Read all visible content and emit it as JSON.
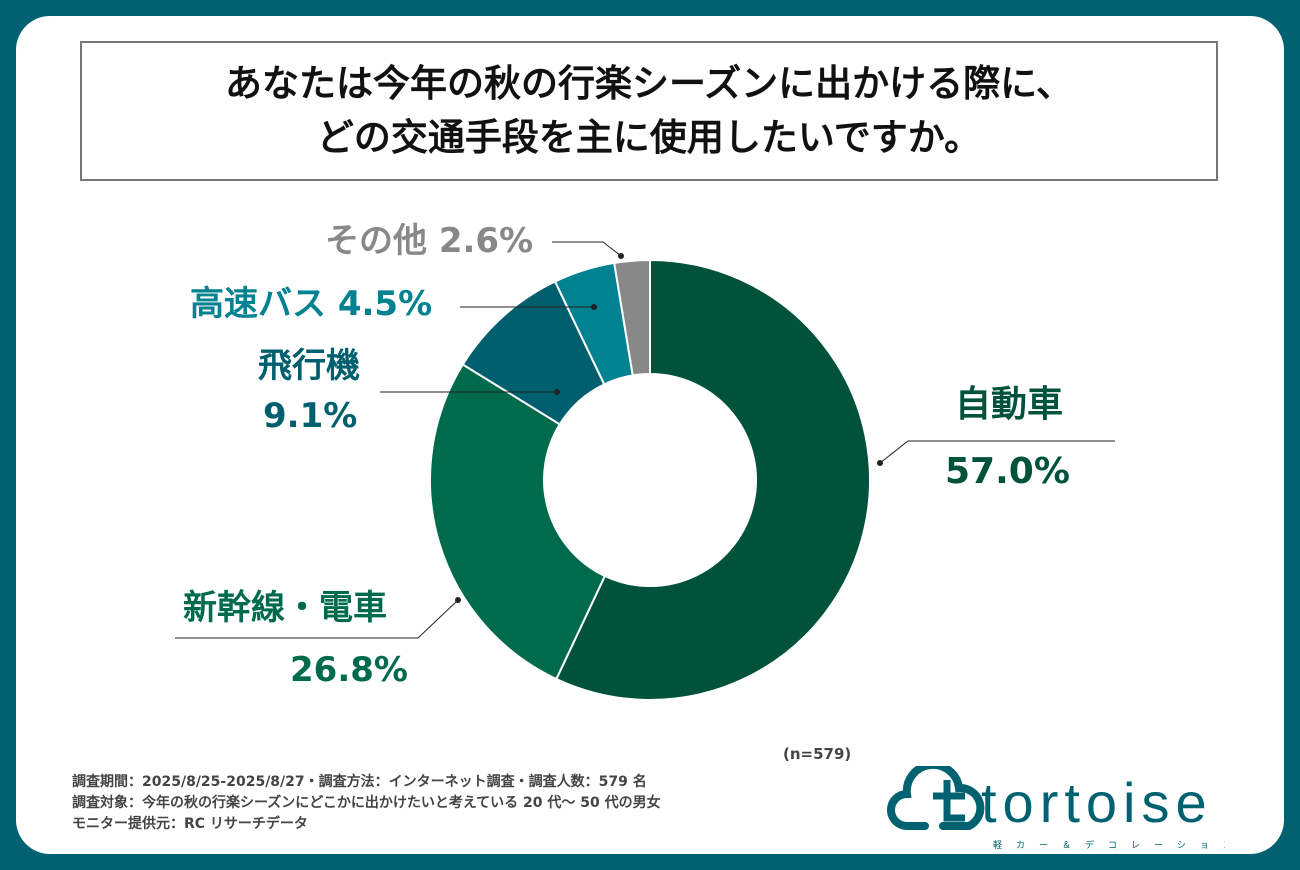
{
  "title": {
    "line1": "あなたは今年の秋の行楽シーズンに出かける際に、",
    "line2": "どの交通手段を主に使用したいですか。"
  },
  "chart_data": {
    "type": "pie",
    "donut": true,
    "direction": "clockwise from top",
    "slices": [
      {
        "label": "自動車",
        "value": 57.0,
        "value_label": "57.0%",
        "color": "#00533a"
      },
      {
        "label": "新幹線・電車",
        "value": 26.8,
        "value_label": "26.8%",
        "color": "#006b4c"
      },
      {
        "label": "飛行機",
        "value": 9.1,
        "value_label": "9.1%",
        "color": "#005f6e"
      },
      {
        "label": "高速バス",
        "value": 4.5,
        "value_label": "4.5%",
        "color": "#008290"
      },
      {
        "label": "その他",
        "value": 2.6,
        "value_label": "2.6%",
        "color": "#888888"
      }
    ]
  },
  "sample": "(n=579)",
  "footer": [
    "調査期間：2025/8/25-2025/8/27・調査方法：インターネット調査・調査人数：579 名",
    "調査対象：今年の秋の行楽シーズンにどこかに出かけたいと考えている 20 代～ 50 代の男女",
    "モニター提供元：RC リサーチデータ"
  ],
  "logo": {
    "text": "tortoise",
    "subtext": "軽カー＆デコレーション",
    "color": "#006270"
  }
}
